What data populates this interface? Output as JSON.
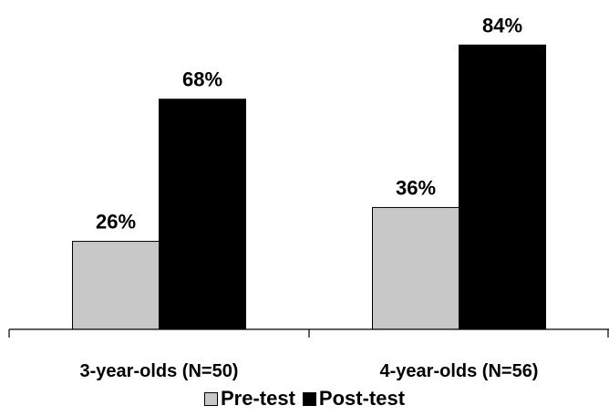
{
  "chart_data": {
    "type": "bar",
    "categories": [
      "3-year-olds (N=50)",
      "4-year-olds (N=56)"
    ],
    "series": [
      {
        "name": "Pre-test",
        "values": [
          26,
          36
        ],
        "labels": [
          "26%",
          "36%"
        ],
        "color": "#c8c8c8"
      },
      {
        "name": "Post-test",
        "values": [
          68,
          84
        ],
        "labels": [
          "68%",
          "84%"
        ],
        "color": "#000000"
      }
    ],
    "ylim": [
      0,
      100
    ],
    "grid": false,
    "legend_position": "bottom",
    "title": "",
    "xlabel": "",
    "ylabel": ""
  }
}
